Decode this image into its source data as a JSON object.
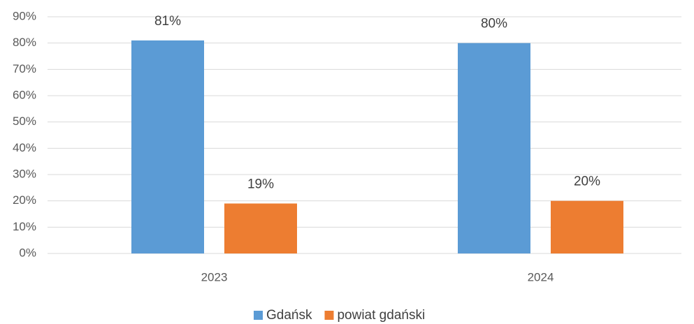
{
  "chart_data": {
    "type": "bar",
    "categories": [
      "2023",
      "2024"
    ],
    "series": [
      {
        "name": "Gdańsk",
        "color": "#5b9bd5",
        "values": [
          81,
          80
        ],
        "value_labels": [
          "81%",
          "80%"
        ]
      },
      {
        "name": "powiat gdański",
        "color": "#ed7d31",
        "values": [
          19,
          20
        ],
        "value_labels": [
          "19%",
          "20%"
        ]
      }
    ],
    "ylim": [
      0,
      90
    ],
    "yticks": [
      {
        "value": 0,
        "label": "0%"
      },
      {
        "value": 10,
        "label": "10%"
      },
      {
        "value": 20,
        "label": "20%"
      },
      {
        "value": 30,
        "label": "30%"
      },
      {
        "value": 40,
        "label": "40%"
      },
      {
        "value": 50,
        "label": "50%"
      },
      {
        "value": 60,
        "label": "60%"
      },
      {
        "value": 70,
        "label": "70%"
      },
      {
        "value": 80,
        "label": "80%"
      },
      {
        "value": 90,
        "label": "90%"
      }
    ],
    "grid": true,
    "legend": "bottom"
  }
}
